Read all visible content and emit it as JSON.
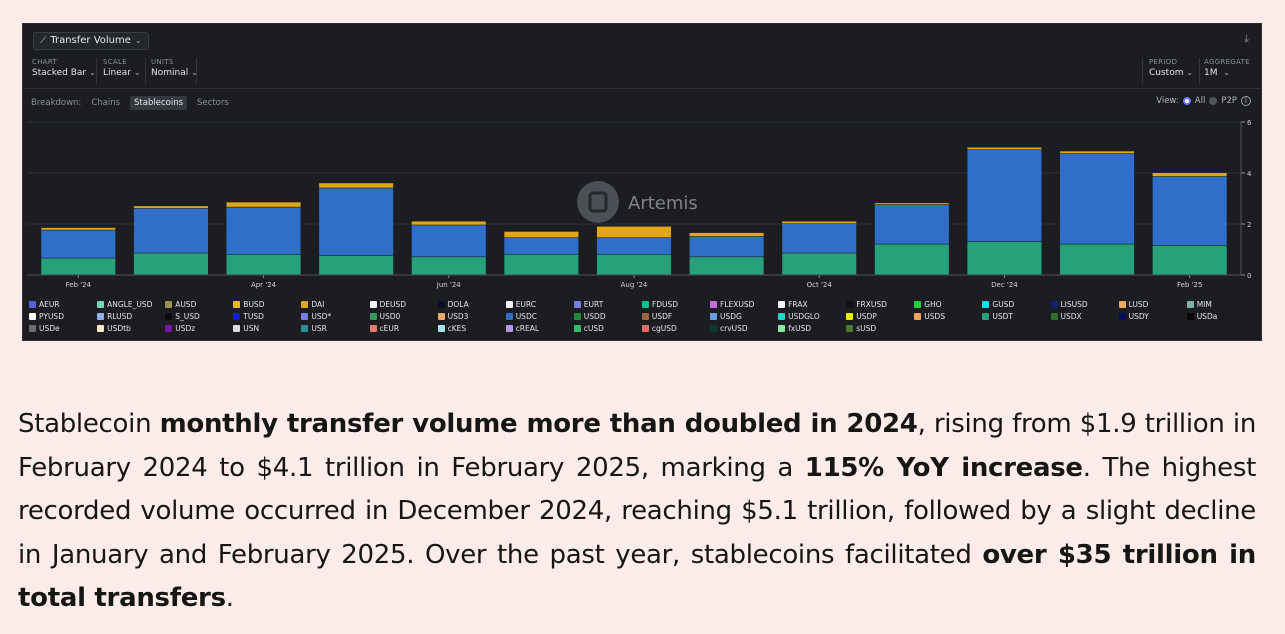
{
  "header": {
    "title": "Transfer Volume",
    "chart": {
      "label": "CHART",
      "value": "Stacked Bar"
    },
    "scale": {
      "label": "SCALE",
      "value": "Linear"
    },
    "units": {
      "label": "UNITS",
      "value": "Nominal"
    },
    "period": {
      "label": "PERIOD",
      "value": "Custom"
    },
    "aggregate": {
      "label": "AGGREGATE",
      "value": "1M"
    }
  },
  "breakdown": {
    "label": "Breakdown:",
    "tabs": [
      "Chains",
      "Stablecoins",
      "Sectors"
    ],
    "active": "Stablecoins"
  },
  "view": {
    "label": "View:",
    "options": [
      "All",
      "P2P"
    ],
    "selected": "All"
  },
  "watermark": "Artemis",
  "colors": {
    "usdc": "#2f6fc9",
    "usdt": "#27a17a",
    "dai": "#e0a613",
    "panel_bg": "#1b1d21",
    "page_bg": "#fdecea"
  },
  "chart_data": {
    "type": "bar",
    "stacked": true,
    "categories": [
      "Feb '24",
      "Mar '24",
      "Apr '24",
      "May '24",
      "Jun '24",
      "Jul '24",
      "Aug '24",
      "Sep '24",
      "Oct '24",
      "Nov '24",
      "Dec '24",
      "Jan '25",
      "Feb '25"
    ],
    "x_tick_labels": [
      "Feb '24",
      "Apr '24",
      "Jun '24",
      "Aug '24",
      "Oct '24",
      "Dec '24",
      "Feb '25"
    ],
    "y_ticks": [
      0,
      2,
      4,
      6
    ],
    "ylim": [
      0,
      6
    ],
    "grid": true,
    "series": [
      {
        "name": "USDT",
        "color": "#27a17a",
        "values": [
          0.65,
          0.85,
          0.8,
          0.75,
          0.7,
          0.8,
          0.8,
          0.7,
          0.85,
          1.2,
          1.3,
          1.2,
          1.15
        ]
      },
      {
        "name": "USDC",
        "color": "#2f6fc9",
        "values": [
          1.1,
          1.75,
          1.85,
          2.65,
          1.25,
          0.65,
          0.65,
          0.8,
          1.15,
          1.55,
          3.6,
          3.55,
          2.7
        ]
      },
      {
        "name": "DAI",
        "color": "#e0a613",
        "values": [
          0.1,
          0.1,
          0.2,
          0.2,
          0.15,
          0.25,
          0.45,
          0.15,
          0.1,
          0.07,
          0.1,
          0.1,
          0.15
        ]
      }
    ],
    "legend": [
      {
        "name": "AEUR",
        "color": "#5b5bf0"
      },
      {
        "name": "ANGLE_USD",
        "color": "#6fdab4"
      },
      {
        "name": "AUSD",
        "color": "#9a9450"
      },
      {
        "name": "BUSD",
        "color": "#f0b90b"
      },
      {
        "name": "DAI",
        "color": "#e0a613"
      },
      {
        "name": "DEUSD",
        "color": "#f3f3f3"
      },
      {
        "name": "DOLA",
        "color": "#0b0b2a"
      },
      {
        "name": "EURC",
        "color": "#f4f4f4"
      },
      {
        "name": "EURT",
        "color": "#7a7af0"
      },
      {
        "name": "FDUSD",
        "color": "#00c08b"
      },
      {
        "name": "FLEXUSD",
        "color": "#c56de8"
      },
      {
        "name": "FRAX",
        "color": "#f5f5f5"
      },
      {
        "name": "FRXUSD",
        "color": "#111111"
      },
      {
        "name": "GHO",
        "color": "#22d03a"
      },
      {
        "name": "GUSD",
        "color": "#00e5f0"
      },
      {
        "name": "LISUSD",
        "color": "#141f7a"
      },
      {
        "name": "LUSD",
        "color": "#f2a95a"
      },
      {
        "name": "MIM",
        "color": "#7fb3a8"
      },
      {
        "name": "PYUSD",
        "color": "#ffffff"
      },
      {
        "name": "RLUSD",
        "color": "#8fb1e8"
      },
      {
        "name": "S_USD",
        "color": "#0d0d0d"
      },
      {
        "name": "TUSD",
        "color": "#1a1ad6"
      },
      {
        "name": "USD*",
        "color": "#7b7be6"
      },
      {
        "name": "USD0",
        "color": "#2e9b5a"
      },
      {
        "name": "USD3",
        "color": "#f0a86a"
      },
      {
        "name": "USDC",
        "color": "#2f6fc9"
      },
      {
        "name": "USDD",
        "color": "#1e8a3c"
      },
      {
        "name": "USDF",
        "color": "#a0643a"
      },
      {
        "name": "USDG",
        "color": "#6a9be8"
      },
      {
        "name": "USDGLO",
        "color": "#2ad3c8"
      },
      {
        "name": "USDP",
        "color": "#e8e81a"
      },
      {
        "name": "USDS",
        "color": "#f2a25a"
      },
      {
        "name": "USDT",
        "color": "#27a17a"
      },
      {
        "name": "USDX",
        "color": "#2e6e2e"
      },
      {
        "name": "USDY",
        "color": "#0c0c5a"
      },
      {
        "name": "USDa",
        "color": "#0a0a0a"
      },
      {
        "name": "USDe",
        "color": "#6b6b6b"
      },
      {
        "name": "USDtb",
        "color": "#fbe9c8"
      },
      {
        "name": "USDz",
        "color": "#7a14a8"
      },
      {
        "name": "USN",
        "color": "#dcdcdc"
      },
      {
        "name": "USR",
        "color": "#2a8e9e"
      },
      {
        "name": "cEUR",
        "color": "#e87a6a"
      },
      {
        "name": "cKES",
        "color": "#a8e0e8"
      },
      {
        "name": "cREAL",
        "color": "#b49ae8"
      },
      {
        "name": "cUSD",
        "color": "#2ec06a"
      },
      {
        "name": "cgUSD",
        "color": "#e86a6a"
      },
      {
        "name": "crvUSD",
        "color": "#0a3a2a"
      },
      {
        "name": "fxUSD",
        "color": "#8ae8a0"
      },
      {
        "name": "sUSD",
        "color": "#4a7a2a"
      }
    ]
  },
  "text": {
    "p1": "Stablecoin ",
    "b1": "monthly transfer volume more than doubled in 2024",
    "p2": ", rising from $1.9 trillion in February 2024 to $4.1 trillion in February 2025, marking a ",
    "b2": "115% YoY increase",
    "p3": ". The highest recorded volume occurred in December 2024, reaching $5.1 trillion, followed by a slight decline in January and February 2025. Over the past year, stablecoins facilitated ",
    "b3": "over $35 trillion in total transfers",
    "p4": "."
  }
}
